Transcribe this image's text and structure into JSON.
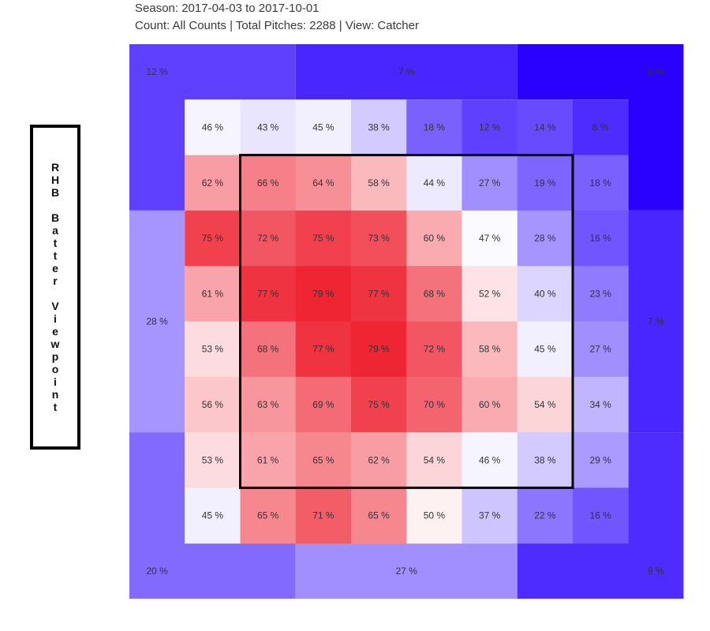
{
  "header": {
    "season": "Season: 2017-04-03 to 2017-10-01",
    "subtitle": "Count: All Counts | Total Pitches: 2288 | View: Catcher"
  },
  "viewpoint_label": "RHB Batter Viewpoint",
  "colors": {
    "cold": "#2a00ff",
    "neutral": "#ffffff",
    "hot": "#ee1e2d",
    "strike_zone_border": "#000000"
  },
  "chart_data": {
    "type": "heatmap",
    "value_unit": "%",
    "color_scale": {
      "min": 0,
      "mid": 48,
      "max": 80
    },
    "outer_zones": [
      {
        "id": "top-left",
        "value": 12
      },
      {
        "id": "top-center",
        "value": 7
      },
      {
        "id": "top-right",
        "value": 0
      },
      {
        "id": "middle-left",
        "value": 28
      },
      {
        "id": "middle-right",
        "value": 7
      },
      {
        "id": "bottom-left",
        "value": 20
      },
      {
        "id": "bottom-center",
        "value": 27
      },
      {
        "id": "bottom-right",
        "value": 8
      }
    ],
    "inner_grid": [
      [
        46,
        43,
        45,
        38,
        18,
        12,
        14,
        8
      ],
      [
        62,
        66,
        64,
        58,
        44,
        27,
        19,
        18
      ],
      [
        75,
        72,
        75,
        73,
        60,
        47,
        28,
        16
      ],
      [
        61,
        77,
        79,
        77,
        68,
        52,
        40,
        23
      ],
      [
        53,
        68,
        77,
        79,
        72,
        58,
        45,
        27
      ],
      [
        56,
        63,
        69,
        75,
        70,
        60,
        54,
        34
      ],
      [
        53,
        61,
        65,
        62,
        54,
        46,
        38,
        29
      ],
      [
        45,
        65,
        71,
        65,
        50,
        37,
        22,
        16
      ]
    ],
    "strike_zone": {
      "rows": [
        1,
        6
      ],
      "cols": [
        1,
        6
      ]
    }
  }
}
